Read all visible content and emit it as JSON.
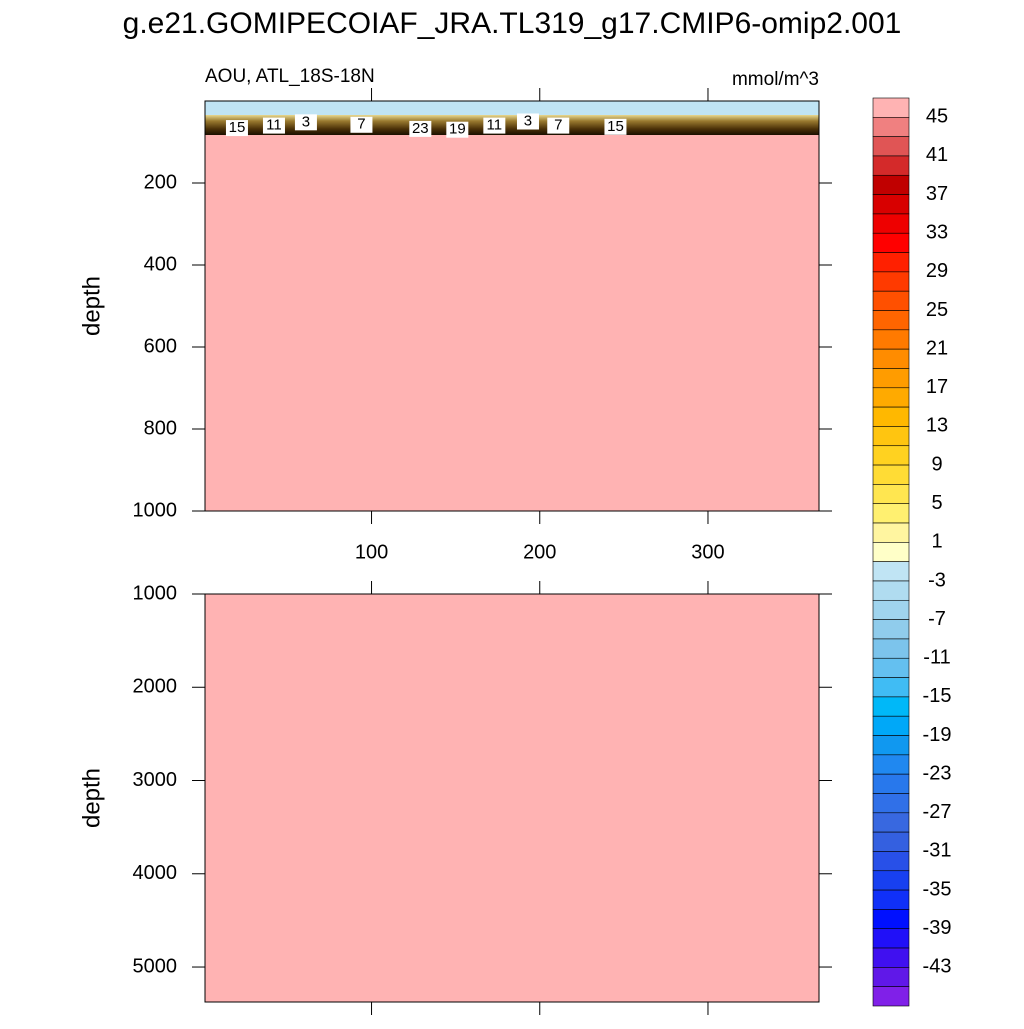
{
  "chart_data": {
    "type": "contour",
    "title": "g.e21.GOMIPECOIAF_JRA.TL319_g17.CMIP6-omip2.001",
    "subtitle": "AOU, ATL_18S-18N",
    "units": "mmol/m^3",
    "xlim": [
      1,
      366
    ],
    "xticks": [
      100,
      200,
      300
    ],
    "panels": [
      {
        "ylabel": "depth",
        "ylim": [
          0,
          1000
        ],
        "yticks": [
          200,
          400,
          600,
          800,
          1000
        ]
      },
      {
        "ylabel": "depth",
        "ylim": [
          1000,
          5375
        ],
        "yticks": [
          1000,
          2000,
          3000,
          4000,
          5000
        ]
      }
    ],
    "contour_labels": [
      {
        "value": 15,
        "x": 20,
        "depth": 66
      },
      {
        "value": 11,
        "x": 42,
        "depth": 60
      },
      {
        "value": 3,
        "x": 61,
        "depth": 52
      },
      {
        "value": 7,
        "x": 94,
        "depth": 58
      },
      {
        "value": 23,
        "x": 129,
        "depth": 68
      },
      {
        "value": 19,
        "x": 151,
        "depth": 70
      },
      {
        "value": 11,
        "x": 173,
        "depth": 60
      },
      {
        "value": 3,
        "x": 193,
        "depth": 50
      },
      {
        "value": 7,
        "x": 211,
        "depth": 60
      },
      {
        "value": 15,
        "x": 245,
        "depth": 63
      }
    ],
    "colorbar": {
      "levels": [
        45,
        43,
        41,
        39,
        37,
        35,
        33,
        31,
        29,
        27,
        25,
        23,
        21,
        19,
        17,
        15,
        13,
        11,
        9,
        7,
        5,
        3,
        1,
        -1,
        -3,
        -5,
        -7,
        -9,
        -11,
        -13,
        -15,
        -17,
        -19,
        -21,
        -23,
        -25,
        -27,
        -29,
        -31,
        -33,
        -35,
        -37,
        -39,
        -41,
        -43,
        -45
      ],
      "colors": [
        "#ffb3b3",
        "#f08080",
        "#e05555",
        "#d42a2a",
        "#c00000",
        "#d80000",
        "#ee0000",
        "#ff0000",
        "#ff2000",
        "#ff3a00",
        "#ff5000",
        "#ff6500",
        "#ff7a00",
        "#ff8c00",
        "#ff9c00",
        "#ffaa00",
        "#ffb800",
        "#ffc510",
        "#ffd220",
        "#ffdc35",
        "#ffe650",
        "#fff070",
        "#fff5a0",
        "#ffffc8",
        "#c0e4f4",
        "#b0dcf0",
        "#a0d4ee",
        "#90ccec",
        "#7cc4ec",
        "#64c0f0",
        "#40bcf4",
        "#00b8f8",
        "#00a8f8",
        "#1098f0",
        "#2088f0",
        "#2878ec",
        "#3070e8",
        "#3868e0",
        "#3460e0",
        "#2850e8",
        "#1840f0",
        "#1030f8",
        "#0010ff",
        "#2010f8",
        "#4010f0",
        "#6018e8",
        "#8020e8"
      ]
    }
  }
}
